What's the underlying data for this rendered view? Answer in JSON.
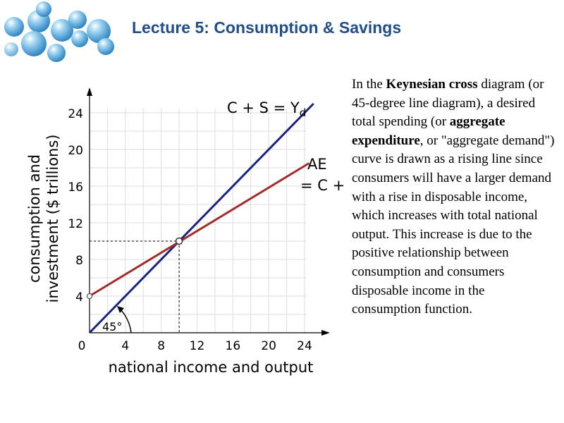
{
  "slide": {
    "title": "Lecture 5: Consumption & Savings",
    "body": {
      "p1": "In the ",
      "b1": "Keynesian cross",
      "p2": " diagram (or 45-degree line diagram), a desired total spending (or ",
      "b2": "aggregate expenditure",
      "p3": ", or \"aggregate demand\") curve is drawn as a rising line since consumers will have a larger demand with a rise in disposable income, which increases with total national output. This increase is due to the positive relationship between consumption and consumers disposable income in the consumption function."
    }
  },
  "chart_data": {
    "type": "line",
    "title": "",
    "xlabel": "national income and output",
    "ylabel_line1": "consumption and",
    "ylabel_line2": "investment ($ trillions)",
    "xlim": [
      0,
      24
    ],
    "ylim": [
      0,
      24
    ],
    "x_ticks": [
      0,
      4,
      8,
      12,
      16,
      20,
      24
    ],
    "y_ticks": [
      4,
      8,
      12,
      16,
      20,
      24
    ],
    "grid": true,
    "series": [
      {
        "name": "C + S = Yd",
        "label_main": "C + S = Y",
        "label_sub": "d",
        "color": "#1a237e",
        "x": [
          0,
          25
        ],
        "y": [
          0,
          25
        ]
      },
      {
        "name": "AE = C + I",
        "label_line1": "AE",
        "label_line2": "= C + I",
        "color": "#a52a2a",
        "x": [
          0,
          24.5
        ],
        "y": [
          4,
          18.5
        ]
      }
    ],
    "annotations": {
      "angle_label": "45°",
      "equilibrium": {
        "x": 10,
        "y": 10
      }
    }
  }
}
